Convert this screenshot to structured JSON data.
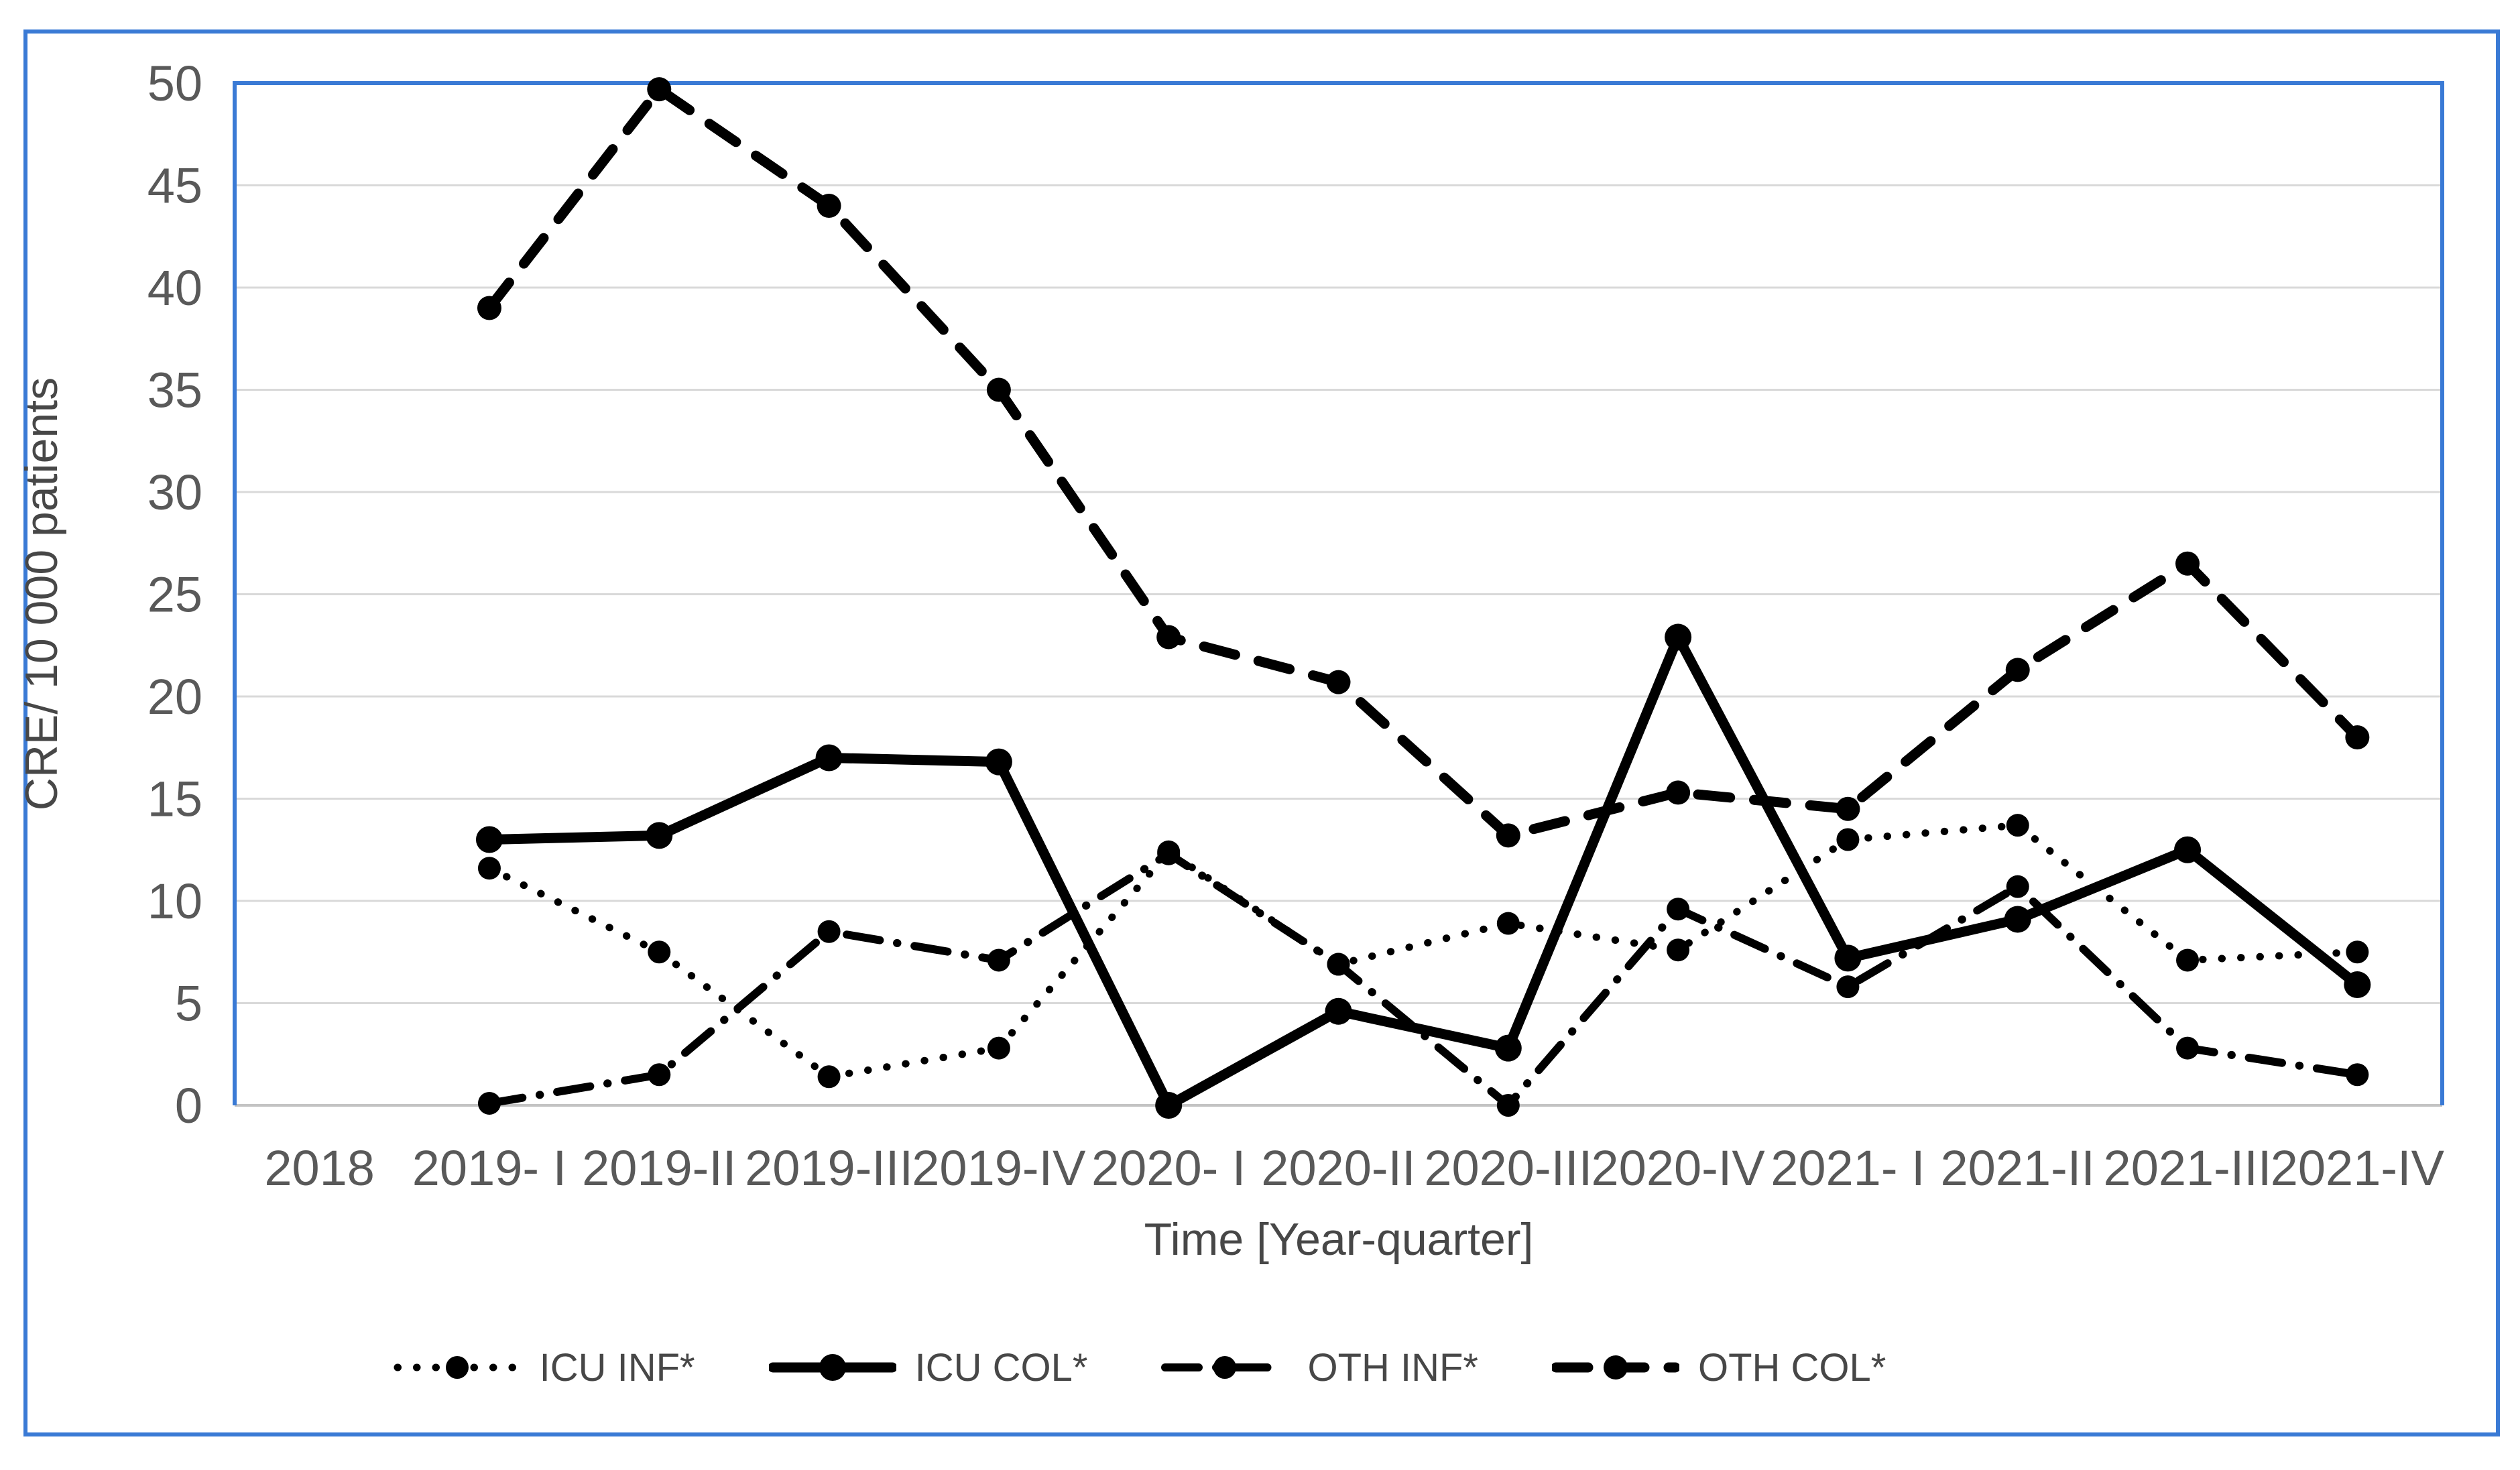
{
  "figure": {
    "border_color": "#3A7AD5",
    "plot_border_color": "#3A7AD5",
    "gridline_color": "#d9d9d9",
    "zero_line_color": "#c3c3c3",
    "series_color": "#000000",
    "tick_color": "#595959",
    "background": "#ffffff"
  },
  "chart_data": {
    "type": "line",
    "title": "",
    "xlabel": "Time [Year-quarter]",
    "ylabel": "CRE/ 10 000 patients",
    "categories": [
      "2018",
      "2019- I",
      "2019-II",
      "2019-III",
      "2019-IV",
      "2020- I",
      "2020-II",
      "2020-III",
      "2020-IV",
      "2021- I",
      "2021-II",
      "2021-III",
      "2021-IV"
    ],
    "ylim": [
      0,
      50
    ],
    "ytick_step": 5,
    "grid": "horizontal",
    "legend_position": "bottom",
    "series": [
      {
        "name": "ICU INF*",
        "style": "dotted",
        "marker": "circle",
        "color": "#000000",
        "values": [
          null,
          11.6,
          7.5,
          1.4,
          2.8,
          12.4,
          6.9,
          8.9,
          7.6,
          13.0,
          13.7,
          7.1,
          7.5
        ]
      },
      {
        "name": "ICU COL*",
        "style": "solid",
        "marker": "circle",
        "color": "#000000",
        "values": [
          null,
          13.0,
          13.2,
          17.0,
          16.8,
          0.0,
          4.6,
          2.8,
          22.9,
          7.2,
          9.1,
          12.5,
          5.9
        ]
      },
      {
        "name": "OTH INF*",
        "style": "dashdot",
        "marker": "circle",
        "color": "#000000",
        "values": [
          null,
          0.1,
          1.5,
          8.5,
          7.1,
          12.3,
          6.9,
          0.0,
          9.6,
          5.8,
          10.7,
          2.8,
          1.5
        ]
      },
      {
        "name": "OTH COL*",
        "style": "dashed",
        "marker": "circle",
        "color": "#000000",
        "values": [
          null,
          39.0,
          49.7,
          44.0,
          35.0,
          22.9,
          20.7,
          13.2,
          15.3,
          14.5,
          21.3,
          26.5,
          18.0
        ]
      }
    ]
  }
}
